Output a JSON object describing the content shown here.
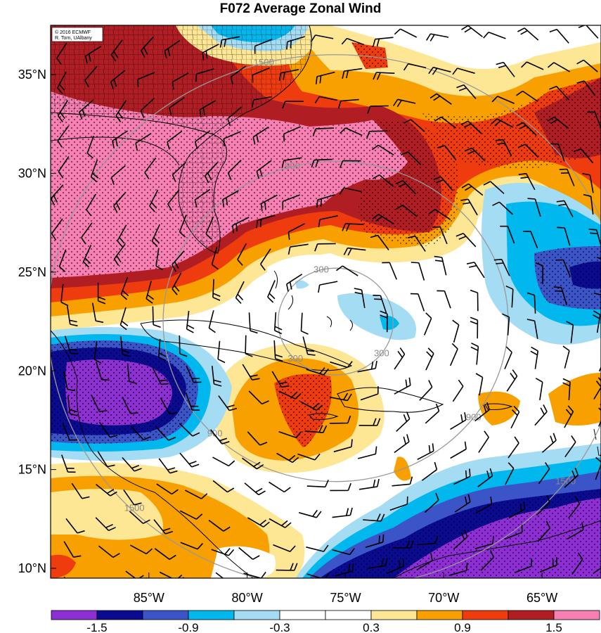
{
  "title": "F072 Average Zonal Wind",
  "credit": {
    "line1": "© 2016 ECMWF",
    "line2": "R. Torn, UAlbany"
  },
  "map": {
    "lon_range": [
      -90,
      -62
    ],
    "lat_range": [
      9.5,
      37.5
    ],
    "lon_ticks": [
      {
        "value": -85,
        "label": "85°W"
      },
      {
        "value": -80,
        "label": "80°W"
      },
      {
        "value": -75,
        "label": "75°W"
      },
      {
        "value": -70,
        "label": "70°W"
      },
      {
        "value": -65,
        "label": "65°W"
      }
    ],
    "lat_ticks": [
      {
        "value": 35,
        "label": "35°N"
      },
      {
        "value": 30,
        "label": "30°N"
      },
      {
        "value": 25,
        "label": "25°N"
      },
      {
        "value": 20,
        "label": "20°N"
      },
      {
        "value": 15,
        "label": "15°N"
      },
      {
        "value": 10,
        "label": "10°N"
      }
    ],
    "range_rings": {
      "center": {
        "lon": -75.5,
        "lat": 22.5
      },
      "rings": [
        {
          "km": 300,
          "label": "300"
        },
        {
          "km": 900,
          "label": "900"
        },
        {
          "km": 1500,
          "label": "1500"
        }
      ],
      "color": "#999999"
    },
    "stippling": "dots",
    "wind_barbs": true
  },
  "colorbar": {
    "colors": [
      "#8e2fd6",
      "#0b0b92",
      "#3b55c8",
      "#00b8ee",
      "#a4dcf4",
      "#ffffff",
      "#ffffff",
      "#fde694",
      "#f7a000",
      "#ef3c0e",
      "#b01e24",
      "#f77fb2"
    ],
    "labels": [
      "-1.5",
      "-0.9",
      "-0.3",
      "0.3",
      "0.9",
      "1.5"
    ],
    "label_positions": [
      1,
      3,
      5,
      7,
      9,
      11
    ]
  },
  "palette": {
    "purple": "#8e2fd6",
    "navy": "#0b0b92",
    "blue": "#3b55c8",
    "cyan": "#00b8ee",
    "lightblue": "#a4dcf4",
    "white": "#ffffff",
    "lightyellow": "#fde694",
    "orange": "#f7a000",
    "redorange": "#ef3c0e",
    "darkred": "#b01e24",
    "pink": "#f77fb2"
  }
}
